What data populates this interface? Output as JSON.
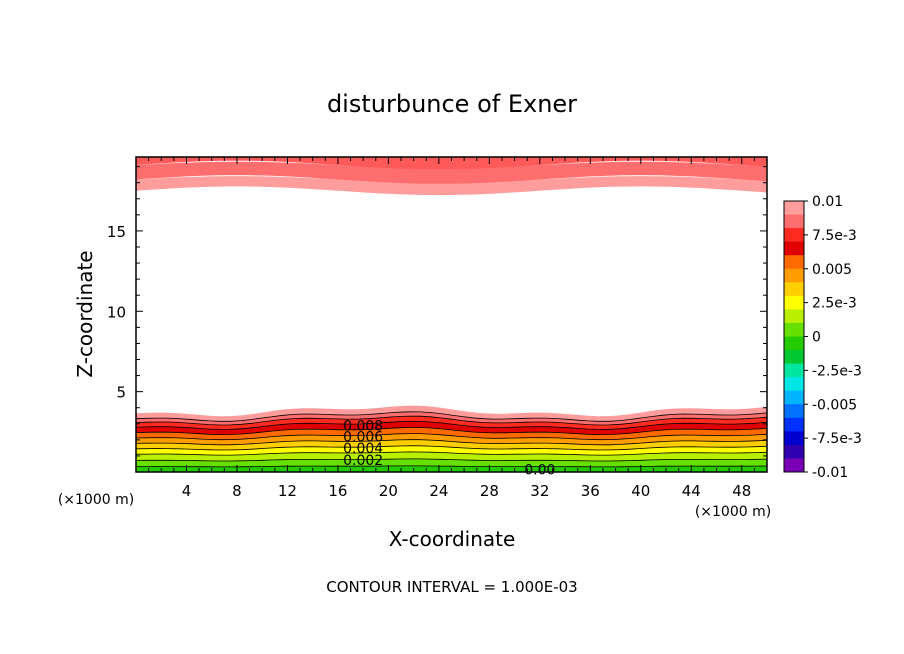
{
  "chart_data": {
    "type": "contour",
    "title": "disturbunce of Exner",
    "xlabel": "X-coordinate",
    "ylabel": "Z-coordinate",
    "x_unit": "(×1000 m)",
    "y_unit": "(×1000 m)",
    "xlim": [
      0,
      50
    ],
    "ylim": [
      0,
      19.6
    ],
    "x_ticks": [
      4,
      8,
      12,
      16,
      20,
      24,
      28,
      32,
      36,
      40,
      44,
      48
    ],
    "y_ticks": [
      5,
      10,
      15
    ],
    "footer": "CONTOUR INTERVAL = 1.000E-03",
    "contour_labels": [
      {
        "text": "0.008",
        "x": 18.0,
        "y": 2.9
      },
      {
        "text": "0.006",
        "x": 18.0,
        "y": 2.2
      },
      {
        "text": "0.004",
        "x": 18.0,
        "y": 1.5
      },
      {
        "text": "0.002",
        "x": 18.0,
        "y": 0.75
      },
      {
        "text": "0.00",
        "x": 32.0,
        "y": 0.15
      }
    ],
    "colorbar": {
      "min": -0.01,
      "max": 0.01,
      "tick_labels": [
        "0.01",
        "7.5e-3",
        "0.005",
        "2.5e-3",
        "0",
        "-2.5e-3",
        "-0.005",
        "-7.5e-3",
        "-0.01"
      ],
      "colors": [
        "#ff9c9c",
        "#ff6e6e",
        "#ff2a20",
        "#e00000",
        "#ff6a00",
        "#ff9c00",
        "#ffcf00",
        "#ffff00",
        "#b8f000",
        "#66e000",
        "#22cc00",
        "#00c832",
        "#00e6a0",
        "#00e6e6",
        "#00b4ff",
        "#0072ff",
        "#0032ff",
        "#0000d0",
        "#3000b0",
        "#7a00b8"
      ]
    }
  }
}
